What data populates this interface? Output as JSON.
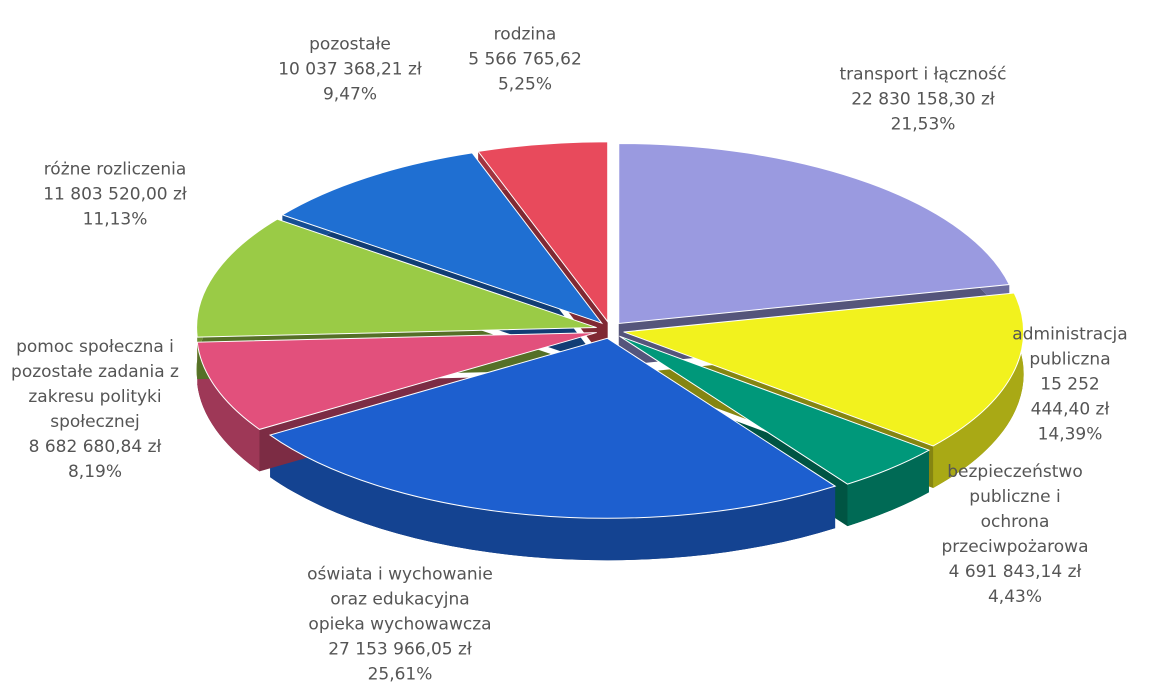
{
  "chart_data": {
    "type": "pie",
    "categories": [
      "transport i łączność",
      "administracja\npubliczna",
      "bezpieczeństwo\npubliczne i ochrona\nprzeciwpożarowa",
      "oświata i wychowanie\noraz edukacyjna\nopieka wychowawcza",
      "pomoc społeczna i\npozostałe zadania z\nzakresu polityki\nspołecznej",
      "różne rozliczenia",
      "pozostałe",
      "rodzina"
    ],
    "values": [
      21.53,
      14.39,
      4.43,
      25.61,
      8.19,
      11.13,
      9.47,
      5.25
    ],
    "value_labels": [
      "21,53%",
      "14,39%",
      "4,43%",
      "25,61%",
      "8,19%",
      "11,13%",
      "9,47%",
      "5,25%"
    ],
    "amounts": [
      22830158.3,
      15252444.4,
      4691843.14,
      27153966.05,
      8682680.84,
      11803520.0,
      10037368.21,
      5566765.62
    ],
    "amount_labels": [
      "22 830 158,30 zł",
      "15 252 444,40 zł",
      "4 691 843,14 zł",
      "27 153 966,05 zł",
      "8 682 680,84 zł",
      "11 803 520,00 zł",
      "10 037 368,21 zł",
      "5 566 765,62"
    ],
    "colors": [
      "#9a9ae0",
      "#f2f21e",
      "#00987a",
      "#1d5fcf",
      "#e2507c",
      "#9acb46",
      "#1f6fd2",
      "#e84a5c"
    ]
  }
}
